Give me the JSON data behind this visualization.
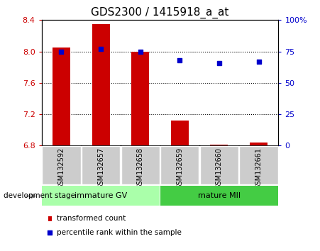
{
  "title": "GDS2300 / 1415918_a_at",
  "categories": [
    "GSM132592",
    "GSM132657",
    "GSM132658",
    "GSM132659",
    "GSM132660",
    "GSM132661"
  ],
  "bar_values": [
    8.05,
    8.35,
    8.0,
    7.12,
    6.81,
    6.84
  ],
  "bar_base": 6.8,
  "percentile_values": [
    75,
    77,
    75,
    68,
    66,
    67
  ],
  "left_ylim": [
    6.8,
    8.4
  ],
  "right_ylim": [
    0,
    100
  ],
  "left_yticks": [
    6.8,
    7.2,
    7.6,
    8.0,
    8.4
  ],
  "right_yticks": [
    0,
    25,
    50,
    75,
    100
  ],
  "right_yticklabels": [
    "0",
    "25",
    "50",
    "75",
    "100%"
  ],
  "bar_color": "#cc0000",
  "dot_color": "#0000cc",
  "group1_label": "immature GV",
  "group2_label": "mature MII",
  "group1_color": "#aaffaa",
  "group2_color": "#44cc44",
  "group_label_header": "development stage",
  "legend_bar_label": "transformed count",
  "legend_dot_label": "percentile rank within the sample",
  "xtick_bg": "#cccccc",
  "plot_bg": "#ffffff",
  "title_fontsize": 11,
  "tick_fontsize": 8,
  "grid_yticks": [
    7.2,
    7.6,
    8.0
  ],
  "n_group1": 3,
  "n_group2": 3
}
